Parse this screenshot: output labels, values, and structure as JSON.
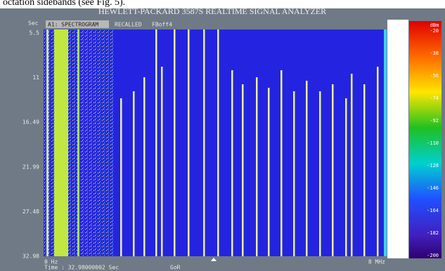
{
  "caption": "octation sidebands (see Fig. 5).",
  "title": "HEWLETT-PACKARD 3587S REALTIME SIGNAL ANALYZER",
  "y_axis": {
    "unit": "Sec",
    "labels": [
      "5.5",
      "11",
      "16.49",
      "21.99",
      "27.48",
      "32.98"
    ]
  },
  "header_tags": [
    "A1: SPECTROGRAM",
    "RECALLED",
    "FBoff4"
  ],
  "x_axis": {
    "start": "0 Hz",
    "end": "8 MHz"
  },
  "status": {
    "time": "Time : 32.98000002 Sec",
    "mode": "GoR"
  },
  "colorbar": {
    "unit": "dBm",
    "labels": [
      "-20",
      "-38",
      "-56",
      "-74",
      "-92",
      "-110",
      "-128",
      "-146",
      "-164",
      "-182",
      "-200"
    ]
  },
  "arrow_label": "Time"
}
